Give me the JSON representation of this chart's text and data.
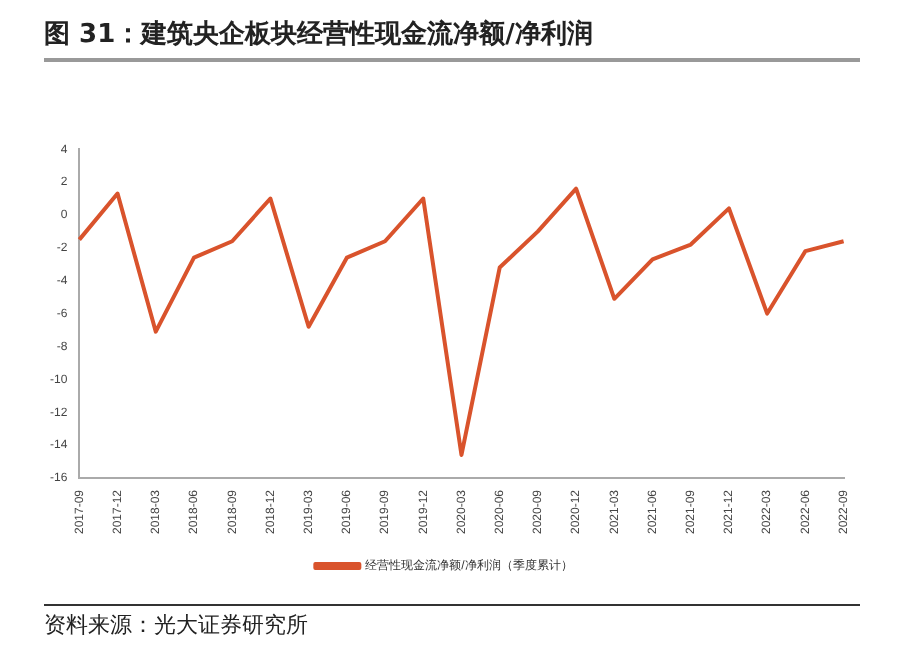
{
  "chart_data": {
    "type": "line",
    "title": "图 31：建筑央企板块经营性现金流净额/净利润",
    "categories": [
      "2017-09",
      "2017-12",
      "2018-03",
      "2018-06",
      "2018-09",
      "2018-12",
      "2019-03",
      "2019-06",
      "2019-09",
      "2019-12",
      "2020-03",
      "2020-06",
      "2020-09",
      "2020-12",
      "2021-03",
      "2021-06",
      "2021-09",
      "2021-12",
      "2022-03",
      "2022-06",
      "2022-09"
    ],
    "series": [
      {
        "name": "经营性现金流净额/净利润（季度累计）",
        "color": "#d9532c",
        "values": [
          -1.5,
          1.3,
          -7.1,
          -2.6,
          -1.6,
          1.0,
          -6.8,
          -2.6,
          -1.6,
          1.0,
          -14.6,
          -3.2,
          -1.0,
          1.6,
          -5.1,
          -2.7,
          -1.8,
          0.4,
          -6.0,
          -2.2,
          -1.6
        ]
      }
    ],
    "ylim": [
      -16,
      4
    ],
    "yticks": [
      -16,
      -14,
      -12,
      -10,
      -8,
      -6,
      -4,
      -2,
      0,
      2,
      4
    ],
    "grid": false,
    "legend": "bottom",
    "marker": "none",
    "line_style": "solid",
    "annotations": [
      "资料来源：光大证券研究所"
    ]
  }
}
